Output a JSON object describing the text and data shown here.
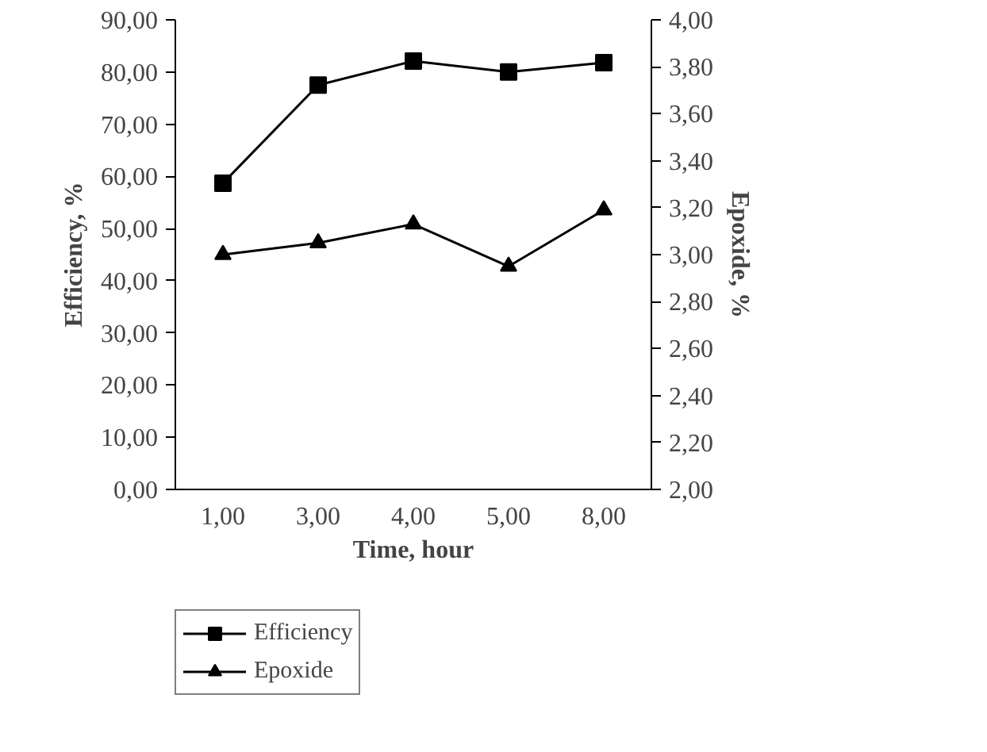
{
  "chart_data": {
    "type": "line",
    "xlabel": "Time, hour",
    "ylabel": "Efficiency, %",
    "y2label": "Epoxide, %",
    "categories": [
      "1,00",
      "3,00",
      "4,00",
      "5,00",
      "8,00"
    ],
    "series": [
      {
        "name": "Efficiency",
        "color": "#000000",
        "marker": "square",
        "values": [
          58.7,
          77.5,
          82.1,
          80.0,
          81.8
        ]
      },
      {
        "name": "Epoxide",
        "color": "#000000",
        "marker": "triangle",
        "axis": "y2",
        "values": [
          3.0,
          3.05,
          3.13,
          2.95,
          3.19
        ]
      }
    ],
    "ylim": [
      0,
      90
    ],
    "yticks": [
      {
        "value": 0,
        "label": "0,00"
      },
      {
        "value": 10,
        "label": "10,00"
      },
      {
        "value": 20,
        "label": "20,00"
      },
      {
        "value": 30,
        "label": "30,00"
      },
      {
        "value": 40,
        "label": "40,00"
      },
      {
        "value": 50,
        "label": "50,00"
      },
      {
        "value": 60,
        "label": "60,00"
      },
      {
        "value": 70,
        "label": "70,00"
      },
      {
        "value": 80,
        "label": "80,00"
      },
      {
        "value": 90,
        "label": "90,00"
      }
    ],
    "y2lim": [
      2,
      4
    ],
    "y2ticks": [
      {
        "value": 2,
        "label": "2,00"
      },
      {
        "value": 2.2,
        "label": "2,20"
      },
      {
        "value": 2.4,
        "label": "2,40"
      },
      {
        "value": 2.6,
        "label": "2,60"
      },
      {
        "value": 2.8,
        "label": "2,80"
      },
      {
        "value": 3,
        "label": "3,00"
      },
      {
        "value": 3.2,
        "label": "3,20"
      },
      {
        "value": 3.4,
        "label": "3,40"
      },
      {
        "value": 3.6,
        "label": "3,60"
      },
      {
        "value": 3.8,
        "label": "3,80"
      },
      {
        "value": 4,
        "label": "4,00"
      }
    ],
    "grid": false,
    "legend": "bottom left"
  }
}
